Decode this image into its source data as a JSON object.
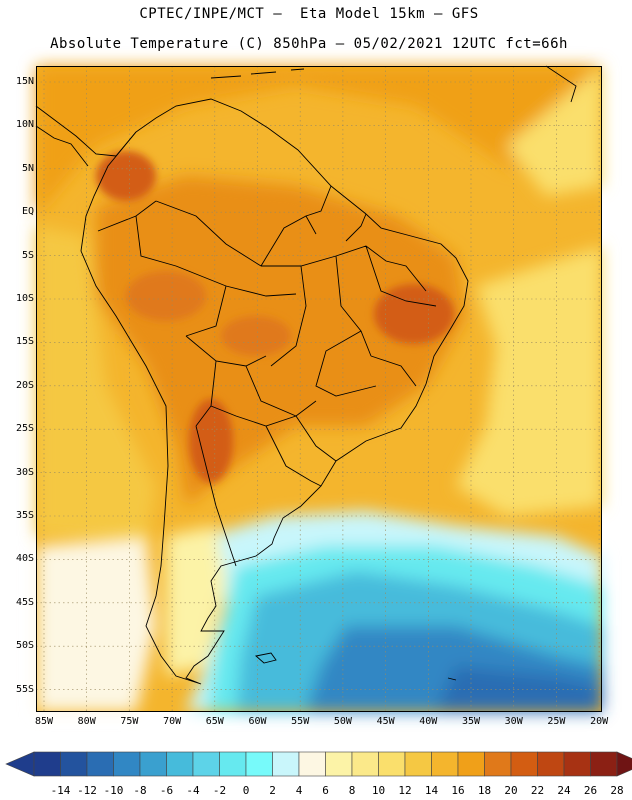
{
  "header": {
    "title_line1": "CPTEC/INPE/MCT –  Eta Model 15km – GFS",
    "title_line2": "Absolute Temperature (C) 850hPa – 05/02/2021 12UTC fct=66h"
  },
  "map": {
    "lat_labels": [
      "15N",
      "10N",
      "5N",
      "EQ",
      "5S",
      "10S",
      "15S",
      "20S",
      "25S",
      "30S",
      "35S",
      "40S",
      "45S",
      "50S",
      "55S"
    ],
    "lon_labels": [
      "85W",
      "80W",
      "75W",
      "70W",
      "65W",
      "60W",
      "55W",
      "50W",
      "45W",
      "40W",
      "35W",
      "30W",
      "25W",
      "20W"
    ]
  },
  "colorbar": {
    "colors": [
      "#1f3d8c",
      "#23539e",
      "#2a6db3",
      "#3187c4",
      "#3aa0cf",
      "#46bbdb",
      "#5dd3e8",
      "#66e9ef",
      "#77fafa",
      "#c9f6fb",
      "#fdf7e3",
      "#fcf3a7",
      "#fbe98a",
      "#fadf6c",
      "#f5c843",
      "#f4b52d",
      "#f0a019",
      "#e0791a",
      "#d35d12",
      "#bf4712",
      "#a73213",
      "#8b2014",
      "#6f1414"
    ],
    "tick_labels": [
      "-14",
      "-12",
      "-10",
      "-8",
      "-6",
      "-4",
      "-2",
      "0",
      "2",
      "4",
      "6",
      "8",
      "10",
      "12",
      "14",
      "16",
      "18",
      "20",
      "22",
      "24",
      "26",
      "28"
    ]
  }
}
